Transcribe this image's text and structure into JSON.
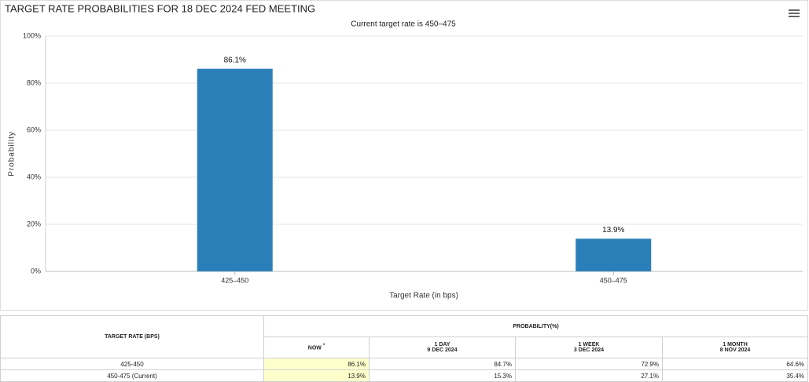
{
  "chart_data": {
    "type": "bar",
    "title": "TARGET RATE PROBABILITIES FOR 18 DEC 2024 FED MEETING",
    "subtitle": "Current target rate is 450–475",
    "x_label": "Target Rate (in bps)",
    "y_label": "Probability",
    "categories": [
      "425–450",
      "450–475"
    ],
    "values": [
      86.1,
      13.9
    ],
    "value_labels": [
      "86.1%",
      "13.9%"
    ],
    "color": "#2b7fb8",
    "ylim": [
      0,
      100
    ],
    "yticks": [
      {
        "value": 0,
        "label": "0%"
      },
      {
        "value": 20,
        "label": "20%"
      },
      {
        "value": 40,
        "label": "40%"
      },
      {
        "value": 60,
        "label": "60%"
      },
      {
        "value": 80,
        "label": "80%"
      },
      {
        "value": 100,
        "label": "100%"
      }
    ],
    "grid": true
  },
  "table": {
    "first_header": "TARGET RATE (BPS)",
    "group_header": "PROBABILITY(%)",
    "columns": [
      {
        "label": "NOW",
        "note": "*"
      },
      {
        "label": "1 DAY",
        "date": "9 DEC 2024"
      },
      {
        "label": "1 WEEK",
        "date": "3 DEC 2024"
      },
      {
        "label": "1 MONTH",
        "date": "8 NOV 2024"
      }
    ],
    "rows": [
      [
        "425-450",
        "86.1%",
        "84.7%",
        "72.9%",
        "64.6%"
      ],
      [
        "450-475 (Current)",
        "13.9%",
        "15.3%",
        "27.1%",
        "35.4%"
      ]
    ]
  }
}
